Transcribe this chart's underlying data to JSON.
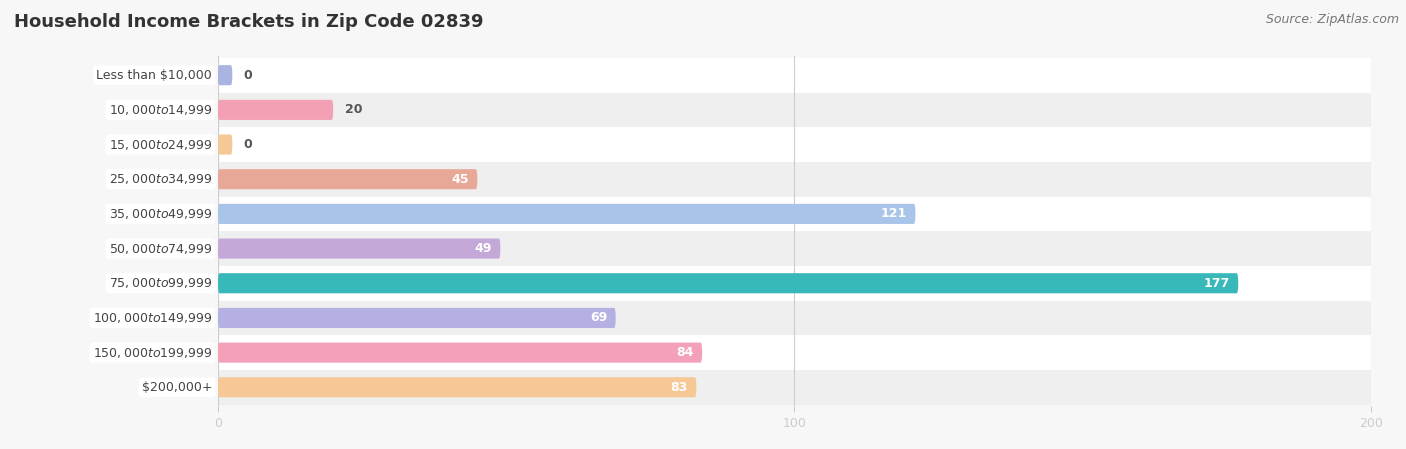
{
  "title": "Household Income Brackets in Zip Code 02839",
  "source": "Source: ZipAtlas.com",
  "categories": [
    "Less than $10,000",
    "$10,000 to $14,999",
    "$15,000 to $24,999",
    "$25,000 to $34,999",
    "$35,000 to $49,999",
    "$50,000 to $74,999",
    "$75,000 to $99,999",
    "$100,000 to $149,999",
    "$150,000 to $199,999",
    "$200,000+"
  ],
  "values": [
    0,
    20,
    0,
    45,
    121,
    49,
    177,
    69,
    84,
    83
  ],
  "bar_colors": [
    "#aab4e0",
    "#f4a0b4",
    "#f5c896",
    "#e8a898",
    "#a8c4e8",
    "#c4a8d8",
    "#38b8b8",
    "#b4b0e4",
    "#f4a0b8",
    "#f5c896"
  ],
  "bg_color": "#f7f7f7",
  "even_row_color": "#ffffff",
  "odd_row_color": "#efefef",
  "xlim": [
    0,
    200
  ],
  "xticks": [
    0,
    100,
    200
  ],
  "value_threshold_white": 30,
  "bar_height": 0.58,
  "label_fontsize": 9,
  "value_fontsize": 9,
  "title_fontsize": 13,
  "source_fontsize": 9
}
